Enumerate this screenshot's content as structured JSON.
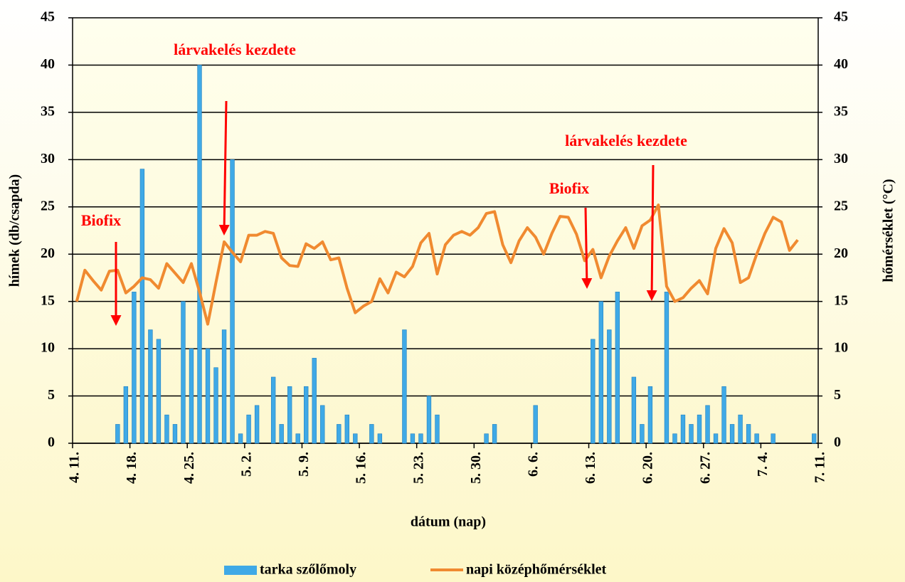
{
  "chart_data": {
    "type": "bar-line",
    "xlabel": "dátum (nap)",
    "ylabel": "hímek (db/csapda)",
    "y2label": "hőmérséklet (°C)",
    "annotations": [
      "Biofix",
      "lárvakelés kezdete",
      "lárvakelés kezdete",
      "Biofix"
    ],
    "categories": [
      "4. 11.",
      null,
      null,
      null,
      null,
      null,
      null,
      "4. 18.",
      null,
      null,
      null,
      null,
      null,
      null,
      "4. 25.",
      null,
      null,
      null,
      null,
      null,
      null,
      "5. 2.",
      null,
      null,
      null,
      null,
      null,
      null,
      "5. 9.",
      null,
      null,
      null,
      null,
      null,
      null,
      "5. 16.",
      null,
      null,
      null,
      null,
      null,
      null,
      "5. 23.",
      null,
      null,
      null,
      null,
      null,
      null,
      "5. 30.",
      null,
      null,
      null,
      null,
      null,
      null,
      "6. 6.",
      null,
      null,
      null,
      null,
      null,
      null,
      "6. 13.",
      null,
      null,
      null,
      null,
      null,
      null,
      "6. 20.",
      null,
      null,
      null,
      null,
      null,
      null,
      "6. 27.",
      null,
      null,
      null,
      null,
      null,
      null,
      "7. 4.",
      null,
      null,
      null,
      null,
      null,
      null,
      "7. 11."
    ],
    "series": [
      {
        "name": "tarka szőlőmoly",
        "type": "bar",
        "color": "#3fa9e6",
        "values": [
          0,
          0,
          0,
          0,
          0,
          2,
          6,
          16,
          29,
          12,
          11,
          3,
          2,
          15,
          10,
          40,
          10,
          8,
          12,
          30,
          1,
          3,
          4,
          0,
          7,
          2,
          6,
          1,
          6,
          9,
          4,
          0,
          2,
          3,
          1,
          0,
          2,
          1,
          0,
          0,
          12,
          1,
          1,
          5,
          3,
          0,
          0,
          0,
          0,
          0,
          1,
          2,
          0,
          0,
          0,
          0,
          4,
          0,
          0,
          0,
          0,
          0,
          0,
          11,
          15,
          12,
          16,
          0,
          7,
          2,
          6,
          0,
          16,
          1,
          3,
          2,
          3,
          4,
          1,
          6,
          2,
          3,
          2,
          1,
          0,
          1,
          0,
          0,
          0,
          0,
          1,
          null
        ]
      },
      {
        "name": "napi középhőmérséklet",
        "type": "line",
        "axis": "y2",
        "color": "#f08a30",
        "values": [
          15,
          18.3,
          17.2,
          16.2,
          18.2,
          18.3,
          15.9,
          16.6,
          17.5,
          17.3,
          16.4,
          19,
          18,
          17,
          19,
          16,
          12.6,
          17,
          21.3,
          20.2,
          19.2,
          22,
          22,
          22.4,
          22.2,
          19.6,
          18.8,
          18.7,
          21.1,
          20.6,
          21.3,
          19.4,
          19.6,
          16.4,
          13.8,
          14.5,
          15,
          17.4,
          15.9,
          18.1,
          17.6,
          18.7,
          21.2,
          22.2,
          17.9,
          21,
          22,
          22.4,
          22,
          22.8,
          24.3,
          24.5,
          21,
          19.1,
          21.4,
          22.8,
          21.8,
          20,
          22.2,
          24,
          23.9,
          22.1,
          19.3,
          20.5,
          17.5,
          19.8,
          21.4,
          22.8,
          20.6,
          23,
          23.6,
          25.2,
          16.6,
          15,
          15.4,
          16.4,
          17.2,
          15.8,
          20.6,
          22.7,
          21.2,
          17,
          17.5,
          20,
          22.2,
          23.9,
          23.4,
          20.4,
          21.5,
          null,
          null,
          null
        ]
      }
    ],
    "ylim": [
      0,
      45
    ],
    "yticks": [
      0,
      5,
      10,
      15,
      20,
      25,
      30,
      35,
      40,
      45
    ],
    "y2lim": [
      0,
      45
    ],
    "y2ticks": [
      0,
      5,
      10,
      15,
      20,
      25,
      30,
      35,
      40,
      45
    ],
    "grid": true,
    "legend": "bottom",
    "annotation_color": "#ff0000"
  }
}
